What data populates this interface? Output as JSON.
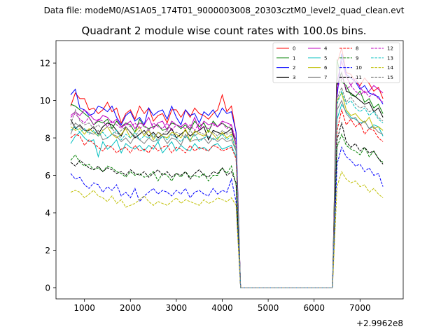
{
  "suptitle": "Data file: modeM0/AS1A05_174T01_9000003008_20303cztM0_level2_quad_clean.evt",
  "chart_data": {
    "type": "line",
    "title": "Quadrant 2 module wise count rates with 100.0s bins.",
    "xlabel": "",
    "ylabel": "",
    "x_offset_label": "+2.9962e8",
    "xlim": [
      380,
      7940
    ],
    "ylim": [
      -0.6,
      13.2
    ],
    "x_ticks": [
      1000,
      2000,
      3000,
      4000,
      5000,
      6000,
      7000
    ],
    "y_ticks": [
      0,
      2,
      4,
      6,
      8,
      10,
      12
    ],
    "grid": false,
    "legend_position": "top-right",
    "x": [
      700,
      800,
      900,
      1000,
      1100,
      1200,
      1300,
      1400,
      1500,
      1600,
      1700,
      1800,
      1900,
      2000,
      2100,
      2200,
      2300,
      2400,
      2500,
      2600,
      2700,
      2800,
      2900,
      3000,
      3100,
      3200,
      3300,
      3400,
      3500,
      3600,
      3700,
      3800,
      3900,
      4000,
      4100,
      4200,
      4300,
      4400,
      4500,
      4600,
      4700,
      4800,
      4900,
      5000,
      5100,
      5200,
      5300,
      5400,
      5500,
      5600,
      5700,
      5800,
      5900,
      6000,
      6100,
      6200,
      6300,
      6400,
      6500,
      6600,
      6700,
      6800,
      6900,
      7000,
      7100,
      7200,
      7300,
      7400,
      7500
    ],
    "series": [
      {
        "name": "0",
        "color": "#ff0000",
        "style": "solid",
        "values": [
          9.7,
          10.4,
          10.1,
          10.1,
          9.5,
          9.6,
          9.3,
          9.5,
          9.9,
          9.4,
          9.6,
          8.8,
          9.3,
          9.5,
          9.0,
          9.7,
          9.3,
          9.6,
          8.9,
          9.2,
          9.3,
          8.8,
          9.5,
          9.5,
          9.1,
          9.5,
          9.1,
          9.6,
          9.3,
          9.2,
          9.0,
          9.3,
          9.5,
          10.3,
          9.4,
          9.7,
          8.3,
          0,
          0,
          0,
          0,
          0,
          0,
          0,
          0,
          0,
          0,
          0,
          0,
          0,
          0,
          0,
          0,
          0,
          0,
          0,
          0,
          0,
          12.0,
          12.8,
          11.5,
          11.4,
          11.0,
          10.8,
          11.2,
          10.9,
          10.5,
          10.7,
          10.1
        ]
      },
      {
        "name": "1",
        "color": "#008000",
        "style": "solid",
        "values": [
          9.8,
          9.7,
          9.5,
          9.3,
          9.1,
          8.7,
          8.9,
          8.8,
          9.0,
          8.5,
          8.9,
          8.6,
          8.8,
          8.7,
          8.3,
          9.0,
          8.6,
          8.5,
          8.6,
          8.7,
          8.4,
          8.5,
          8.8,
          8.7,
          8.5,
          8.7,
          8.4,
          8.9,
          8.6,
          8.8,
          8.3,
          8.9,
          8.6,
          8.8,
          8.6,
          8.5,
          7.9,
          0,
          0,
          0,
          0,
          0,
          0,
          0,
          0,
          0,
          0,
          0,
          0,
          0,
          0,
          0,
          0,
          0,
          0,
          0,
          0,
          0,
          12.2,
          11.0,
          10.8,
          10.3,
          10.2,
          10.5,
          9.9,
          10.1,
          9.6,
          9.8,
          9.3
        ]
      },
      {
        "name": "2",
        "color": "#0000ff",
        "style": "solid",
        "values": [
          10.3,
          10.6,
          9.6,
          9.5,
          9.2,
          9.3,
          9.7,
          9.6,
          9.4,
          9.7,
          9.1,
          8.7,
          9.2,
          9.4,
          8.9,
          9.1,
          8.7,
          9.6,
          9.2,
          9.4,
          9.5,
          9.0,
          9.7,
          9.1,
          8.7,
          9.5,
          9.2,
          9.3,
          8.8,
          9.4,
          9.2,
          9.5,
          9.1,
          9.6,
          9.3,
          9.4,
          8.3,
          0,
          0,
          0,
          0,
          0,
          0,
          0,
          0,
          0,
          0,
          0,
          0,
          0,
          0,
          0,
          0,
          0,
          0,
          0,
          0,
          0,
          10.2,
          12.5,
          11.4,
          11.2,
          11.0,
          10.6,
          10.8,
          10.4,
          10.3,
          10.2,
          9.8
        ]
      },
      {
        "name": "3",
        "color": "#000000",
        "style": "solid",
        "values": [
          9.0,
          8.5,
          8.7,
          8.4,
          8.4,
          8.6,
          8.2,
          8.6,
          8.8,
          8.7,
          8.4,
          8.1,
          8.6,
          8.3,
          8.0,
          8.2,
          8.4,
          8.1,
          8.3,
          8.0,
          8.2,
          8.2,
          8.5,
          8.0,
          8.2,
          8.4,
          8.1,
          8.3,
          8.4,
          8.6,
          7.9,
          8.4,
          8.3,
          8.2,
          8.3,
          8.5,
          7.6,
          0,
          0,
          0,
          0,
          0,
          0,
          0,
          0,
          0,
          0,
          0,
          0,
          0,
          0,
          0,
          0,
          0,
          0,
          0,
          0,
          0,
          10.8,
          11.5,
          10.5,
          10.4,
          10.2,
          10.0,
          9.8,
          9.9,
          9.4,
          9.6,
          9.1
        ]
      },
      {
        "name": "4",
        "color": "#bf00bf",
        "style": "solid",
        "values": [
          9.2,
          9.4,
          9.2,
          9.5,
          9.3,
          9.0,
          8.9,
          9.2,
          9.1,
          8.8,
          9.0,
          8.6,
          8.7,
          8.9,
          8.5,
          8.8,
          8.7,
          9.1,
          8.5,
          8.8,
          8.9,
          8.4,
          8.9,
          8.7,
          8.6,
          8.8,
          8.5,
          9.1,
          8.4,
          8.9,
          8.7,
          8.8,
          8.6,
          8.9,
          8.8,
          8.7,
          7.6,
          0,
          0,
          0,
          0,
          0,
          0,
          0,
          0,
          0,
          0,
          0,
          0,
          0,
          0,
          0,
          0,
          0,
          0,
          0,
          0,
          0,
          11.0,
          12.1,
          11.3,
          10.8,
          11.2,
          10.7,
          10.4,
          10.5,
          10.8,
          10.6,
          10.4
        ]
      },
      {
        "name": "5",
        "color": "#00bfbf",
        "style": "solid",
        "values": [
          7.7,
          8.1,
          8.3,
          8.0,
          7.8,
          7.9,
          7.0,
          7.8,
          7.4,
          7.6,
          7.9,
          7.2,
          7.7,
          7.5,
          7.4,
          7.6,
          7.3,
          7.6,
          7.4,
          7.8,
          7.2,
          7.5,
          7.8,
          7.3,
          7.6,
          7.4,
          7.3,
          7.7,
          7.4,
          7.5,
          7.3,
          7.6,
          7.7,
          7.4,
          7.5,
          7.6,
          7.0,
          0,
          0,
          0,
          0,
          0,
          0,
          0,
          0,
          0,
          0,
          0,
          0,
          0,
          0,
          0,
          0,
          0,
          0,
          0,
          0,
          0,
          9.0,
          9.8,
          9.4,
          9.1,
          9.0,
          8.8,
          8.9,
          8.5,
          8.7,
          8.6,
          8.1
        ]
      },
      {
        "name": "6",
        "color": "#bfbf00",
        "style": "solid",
        "values": [
          8.6,
          8.4,
          8.5,
          8.2,
          8.5,
          8.3,
          8.1,
          8.4,
          8.6,
          8.2,
          8.0,
          8.2,
          8.5,
          8.0,
          8.3,
          8.6,
          8.1,
          8.4,
          7.9,
          8.3,
          8.1,
          8.0,
          8.3,
          8.2,
          8.0,
          8.5,
          7.8,
          8.4,
          8.2,
          8.1,
          8.4,
          8.2,
          7.9,
          8.3,
          8.0,
          8.2,
          7.3,
          0,
          0,
          0,
          0,
          0,
          0,
          0,
          0,
          0,
          0,
          0,
          0,
          0,
          0,
          0,
          0,
          0,
          0,
          0,
          0,
          0,
          10.0,
          10.4,
          9.5,
          9.2,
          9.3,
          9.0,
          8.8,
          9.1,
          8.5,
          8.6,
          8.4
        ]
      },
      {
        "name": "7",
        "color": "#808080",
        "style": "solid",
        "values": [
          8.2,
          8.8,
          8.6,
          8.4,
          8.3,
          8.2,
          8.4,
          7.9,
          8.0,
          8.2,
          8.1,
          7.8,
          8.0,
          7.7,
          8.1,
          7.9,
          7.7,
          8.0,
          7.8,
          7.9,
          8.1,
          7.7,
          8.0,
          7.9,
          7.6,
          8.2,
          7.8,
          7.9,
          7.9,
          8.0,
          7.7,
          8.0,
          7.8,
          8.0,
          7.8,
          7.9,
          7.3,
          0,
          0,
          0,
          0,
          0,
          0,
          0,
          0,
          0,
          0,
          0,
          0,
          0,
          0,
          0,
          0,
          0,
          0,
          0,
          0,
          0,
          9.5,
          10.0,
          9.3,
          9.0,
          9.1,
          8.7,
          8.9,
          8.5,
          8.6,
          8.3,
          8.2
        ]
      },
      {
        "name": "8",
        "color": "#ff0000",
        "style": "dashed",
        "values": [
          8.0,
          8.2,
          8.1,
          7.6,
          7.9,
          7.7,
          7.5,
          7.3,
          7.6,
          7.5,
          7.2,
          7.4,
          7.5,
          7.2,
          7.6,
          7.3,
          7.4,
          7.2,
          7.6,
          7.3,
          7.5,
          7.6,
          7.2,
          7.5,
          7.4,
          7.2,
          7.6,
          7.3,
          7.5,
          7.4,
          7.3,
          7.6,
          7.5,
          7.3,
          7.4,
          7.5,
          6.9,
          0,
          0,
          0,
          0,
          0,
          0,
          0,
          0,
          0,
          0,
          0,
          0,
          0,
          0,
          0,
          0,
          0,
          0,
          0,
          0,
          0,
          8.4,
          9.5,
          8.7,
          9.0,
          8.6,
          8.8,
          8.2,
          8.5,
          8.4,
          8.0,
          7.8
        ]
      },
      {
        "name": "9",
        "color": "#008000",
        "style": "dashed",
        "values": [
          6.8,
          7.1,
          6.7,
          6.5,
          6.6,
          6.3,
          6.4,
          6.2,
          6.5,
          6.4,
          6.2,
          6.1,
          5.9,
          6.2,
          6.0,
          6.1,
          5.9,
          6.0,
          6.2,
          5.7,
          6.1,
          6.0,
          5.7,
          6.1,
          5.9,
          6.2,
          5.9,
          6.0,
          5.9,
          6.1,
          5.7,
          6.0,
          6.0,
          6.4,
          6.1,
          6.5,
          5.5,
          0,
          0,
          0,
          0,
          0,
          0,
          0,
          0,
          0,
          0,
          0,
          0,
          0,
          0,
          0,
          0,
          0,
          0,
          0,
          0,
          0,
          7.5,
          8.2,
          7.6,
          7.4,
          7.3,
          7.1,
          7.5,
          7.0,
          7.3,
          6.9,
          6.7
        ]
      },
      {
        "name": "10",
        "color": "#0000ff",
        "style": "dashed",
        "values": [
          6.1,
          5.8,
          5.9,
          5.5,
          5.3,
          5.6,
          5.5,
          5.1,
          5.4,
          5.2,
          5.5,
          4.9,
          5.1,
          4.8,
          5.3,
          4.6,
          4.9,
          5.1,
          5.3,
          5.0,
          5.2,
          5.1,
          4.9,
          5.2,
          5.0,
          5.3,
          4.8,
          5.1,
          5.2,
          5.0,
          4.9,
          5.3,
          5.0,
          5.2,
          5.1,
          5.8,
          4.6,
          0,
          0,
          0,
          0,
          0,
          0,
          0,
          0,
          0,
          0,
          0,
          0,
          0,
          0,
          0,
          0,
          0,
          0,
          0,
          0,
          0,
          6.6,
          7.5,
          7.0,
          6.8,
          6.5,
          6.6,
          6.2,
          6.4,
          6.0,
          6.1,
          5.4
        ]
      },
      {
        "name": "11",
        "color": "#000000",
        "style": "dashed",
        "values": [
          6.7,
          6.5,
          6.8,
          6.6,
          6.4,
          6.3,
          6.5,
          6.2,
          6.4,
          6.3,
          6.1,
          6.2,
          6.0,
          6.3,
          6.1,
          6.0,
          6.2,
          5.9,
          6.1,
          6.3,
          6.0,
          6.2,
          5.9,
          6.1,
          6.0,
          6.2,
          5.8,
          6.1,
          6.3,
          6.0,
          5.9,
          6.2,
          6.1,
          6.4,
          6.0,
          6.2,
          5.6,
          0,
          0,
          0,
          0,
          0,
          0,
          0,
          0,
          0,
          0,
          0,
          0,
          0,
          0,
          0,
          0,
          0,
          0,
          0,
          0,
          0,
          7.9,
          8.8,
          7.8,
          7.5,
          7.7,
          7.3,
          7.5,
          7.2,
          7.3,
          6.9,
          6.6
        ]
      },
      {
        "name": "12",
        "color": "#bf00bf",
        "style": "dashed",
        "values": [
          9.1,
          9.3,
          9.0,
          8.8,
          9.1,
          8.7,
          9.0,
          8.9,
          8.6,
          8.9,
          8.7,
          8.5,
          8.8,
          8.6,
          8.8,
          8.5,
          8.7,
          8.4,
          8.8,
          8.6,
          8.5,
          8.8,
          8.4,
          8.7,
          8.6,
          8.5,
          8.7,
          8.4,
          8.8,
          8.6,
          8.5,
          8.7,
          8.6,
          8.8,
          8.5,
          8.7,
          7.8,
          0,
          0,
          0,
          0,
          0,
          0,
          0,
          0,
          0,
          0,
          0,
          0,
          0,
          0,
          0,
          0,
          0,
          0,
          0,
          0,
          0,
          10.6,
          11.3,
          10.6,
          10.8,
          10.5,
          10.3,
          10.5,
          10.2,
          10.4,
          10.1,
          9.9
        ]
      },
      {
        "name": "13",
        "color": "#00bfbf",
        "style": "dashed",
        "values": [
          8.4,
          8.6,
          8.3,
          8.5,
          8.2,
          8.4,
          8.1,
          8.3,
          8.0,
          8.2,
          8.4,
          7.9,
          8.2,
          8.0,
          8.3,
          7.9,
          8.1,
          8.0,
          8.2,
          7.8,
          8.1,
          7.9,
          8.2,
          8.0,
          7.8,
          8.1,
          7.9,
          8.2,
          7.8,
          8.0,
          8.1,
          7.9,
          8.0,
          8.2,
          7.9,
          8.1,
          7.4,
          0,
          0,
          0,
          0,
          0,
          0,
          0,
          0,
          0,
          0,
          0,
          0,
          0,
          0,
          0,
          0,
          0,
          0,
          0,
          0,
          0,
          9.8,
          10.5,
          9.8,
          10.0,
          9.6,
          9.4,
          9.6,
          9.2,
          9.4,
          9.0,
          8.8
        ]
      },
      {
        "name": "14",
        "color": "#bfbf00",
        "style": "dashed",
        "values": [
          5.1,
          5.2,
          5.1,
          4.8,
          5.0,
          5.2,
          4.9,
          4.8,
          4.6,
          4.9,
          4.5,
          4.7,
          4.3,
          4.4,
          4.5,
          4.7,
          4.9,
          4.6,
          4.4,
          4.6,
          4.5,
          4.4,
          4.6,
          4.8,
          4.5,
          4.7,
          4.6,
          4.5,
          4.4,
          4.7,
          4.5,
          4.6,
          4.8,
          4.7,
          4.6,
          4.8,
          4.4,
          0,
          0,
          0,
          0,
          0,
          0,
          0,
          0,
          0,
          0,
          0,
          0,
          0,
          0,
          0,
          0,
          0,
          0,
          0,
          0,
          0,
          5.4,
          6.2,
          5.8,
          5.6,
          5.7,
          5.4,
          5.5,
          5.1,
          5.3,
          5.0,
          4.8
        ]
      },
      {
        "name": "15",
        "color": "#808080",
        "style": "dashed",
        "values": [
          8.7,
          9.5,
          8.9,
          8.7,
          8.8,
          8.5,
          8.7,
          8.4,
          8.6,
          8.5,
          8.2,
          8.4,
          8.6,
          8.3,
          8.1,
          8.4,
          8.2,
          8.5,
          8.0,
          8.3,
          8.2,
          8.4,
          8.1,
          8.3,
          8.2,
          8.0,
          8.4,
          8.1,
          8.3,
          8.2,
          8.0,
          8.3,
          8.1,
          8.4,
          8.2,
          8.3,
          7.7,
          0,
          0,
          0,
          0,
          0,
          0,
          0,
          0,
          0,
          0,
          0,
          0,
          0,
          0,
          0,
          0,
          0,
          0,
          0,
          0,
          0,
          10.1,
          10.7,
          9.9,
          10.2,
          9.8,
          9.6,
          9.7,
          9.4,
          9.5,
          9.1,
          8.9
        ]
      }
    ]
  }
}
